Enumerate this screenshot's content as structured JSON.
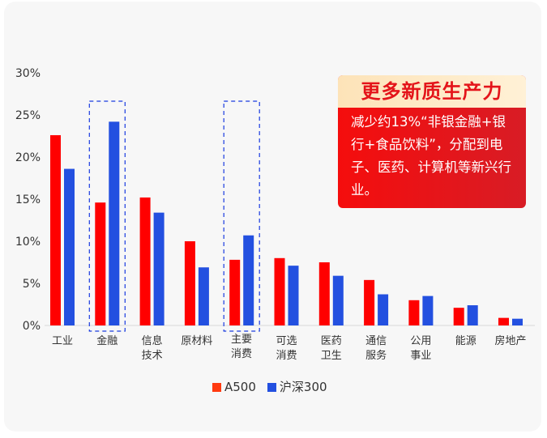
{
  "chart_data": {
    "type": "bar",
    "categories": [
      [
        "工业"
      ],
      [
        "金融"
      ],
      [
        "信息",
        "技术"
      ],
      [
        "原材料"
      ],
      [
        "主要",
        "消费"
      ],
      [
        "可选",
        "消费"
      ],
      [
        "医药",
        "卫生"
      ],
      [
        "通信",
        "服务"
      ],
      [
        "公用",
        "事业"
      ],
      [
        "能源"
      ],
      [
        "房地产"
      ]
    ],
    "series": [
      {
        "name": "A500",
        "color": "#ff0000",
        "values": [
          22.6,
          14.6,
          15.2,
          10.0,
          7.8,
          8.0,
          7.5,
          5.4,
          3.0,
          2.1,
          0.9
        ]
      },
      {
        "name": "沪深300",
        "color": "#2350e0",
        "values": [
          18.6,
          24.2,
          13.4,
          6.9,
          10.7,
          7.1,
          5.9,
          3.7,
          3.5,
          2.4,
          0.8
        ]
      }
    ],
    "ylim": [
      0,
      30
    ],
    "yticks": [
      "0%",
      "5%",
      "10%",
      "15%",
      "20%",
      "25%",
      "30%"
    ],
    "highlighted_categories": [
      "金融",
      "主要消费"
    ],
    "legend_position": "bottom",
    "grid": false
  },
  "callout": {
    "title": "更多新质生产力",
    "body": "减少约13%“非银金融+银行+食品饮料”，分配到电子、医药、计算机等新兴行业。"
  },
  "legend": [
    {
      "label": "A500",
      "color": "#ff3a10"
    },
    {
      "label": "沪深300",
      "color": "#2350e0"
    }
  ]
}
